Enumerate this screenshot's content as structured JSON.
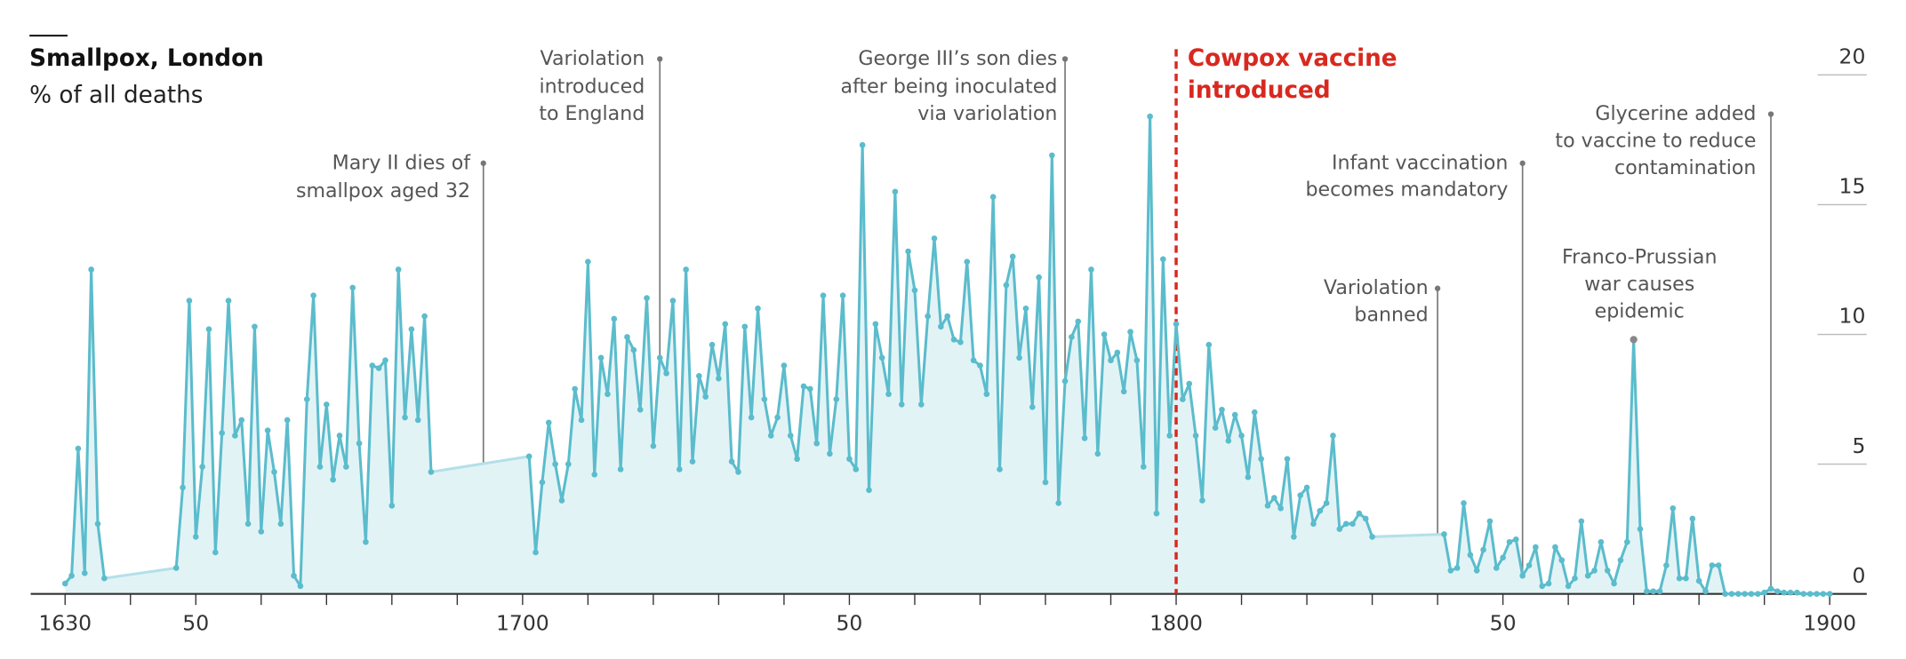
{
  "chart_data": {
    "type": "line",
    "title": "Smallpox, London",
    "subtitle": "% of all deaths",
    "xlim": [
      1625,
      1905
    ],
    "ylim": [
      0,
      20
    ],
    "xticks": [
      1630,
      {
        "value": 1650,
        "label": "50"
      },
      1700,
      {
        "value": 1750,
        "label": "50"
      },
      1800,
      {
        "value": 1850,
        "label": "50"
      },
      1900
    ],
    "xminor_ticks": [
      1640,
      1660,
      1670,
      1680,
      1690,
      1710,
      1720,
      1730,
      1740,
      1760,
      1770,
      1780,
      1790,
      1810,
      1820,
      1830,
      1840,
      1860,
      1870,
      1880,
      1890
    ],
    "yticks": [
      0,
      5,
      10,
      15,
      20
    ],
    "series": [
      {
        "color": "#5bbccc",
        "x": [
          1630,
          1631,
          1632,
          1633,
          1634,
          1635,
          1636,
          1647,
          1648,
          1649,
          1650,
          1651,
          1652,
          1653,
          1654,
          1655,
          1656,
          1657,
          1658,
          1659,
          1660,
          1661,
          1662,
          1663,
          1664,
          1665,
          1666,
          1667,
          1668,
          1669,
          1670,
          1671,
          1672,
          1673,
          1674,
          1675,
          1676,
          1677,
          1678,
          1679,
          1680,
          1681,
          1682,
          1683,
          1684,
          1685,
          1686,
          1701,
          1702,
          1703,
          1704,
          1705,
          1706,
          1707,
          1708,
          1709,
          1710,
          1711,
          1712,
          1713,
          1714,
          1715,
          1716,
          1717,
          1718,
          1719,
          1720,
          1721,
          1722,
          1723,
          1724,
          1725,
          1726,
          1727,
          1728,
          1729,
          1730,
          1731,
          1732,
          1733,
          1734,
          1735,
          1736,
          1737,
          1738,
          1739,
          1740,
          1741,
          1742,
          1743,
          1744,
          1745,
          1746,
          1747,
          1748,
          1749,
          1750,
          1751,
          1752,
          1753,
          1754,
          1755,
          1756,
          1757,
          1758,
          1759,
          1760,
          1761,
          1762,
          1763,
          1764,
          1765,
          1766,
          1767,
          1768,
          1769,
          1770,
          1771,
          1772,
          1773,
          1774,
          1775,
          1776,
          1777,
          1778,
          1779,
          1780,
          1781,
          1782,
          1783,
          1784,
          1785,
          1786,
          1787,
          1788,
          1789,
          1790,
          1791,
          1792,
          1793,
          1794,
          1795,
          1796,
          1797,
          1798,
          1799,
          1800,
          1801,
          1802,
          1803,
          1804,
          1805,
          1806,
          1807,
          1808,
          1809,
          1810,
          1811,
          1812,
          1813,
          1814,
          1815,
          1816,
          1817,
          1818,
          1819,
          1820,
          1821,
          1822,
          1823,
          1824,
          1825,
          1826,
          1827,
          1828,
          1829,
          1830,
          1841,
          1842,
          1843,
          1844,
          1845,
          1846,
          1847,
          1848,
          1849,
          1850,
          1851,
          1852,
          1853,
          1854,
          1855,
          1856,
          1857,
          1858,
          1859,
          1860,
          1861,
          1862,
          1863,
          1864,
          1865,
          1866,
          1867,
          1868,
          1869,
          1870,
          1871,
          1872,
          1873,
          1874,
          1875,
          1876,
          1877,
          1878,
          1879,
          1880,
          1881,
          1882,
          1883,
          1884,
          1885,
          1886,
          1887,
          1888,
          1889,
          1890,
          1891,
          1892,
          1893,
          1894,
          1895,
          1896,
          1897,
          1898,
          1899,
          1900
        ],
        "values": [
          0.4,
          0.7,
          5.6,
          0.8,
          12.5,
          2.7,
          0.6,
          1.0,
          4.1,
          11.3,
          2.2,
          4.9,
          10.2,
          1.6,
          6.2,
          11.3,
          6.1,
          6.7,
          2.7,
          10.3,
          2.4,
          6.3,
          4.7,
          2.7,
          6.7,
          0.7,
          0.3,
          7.5,
          11.5,
          4.9,
          7.3,
          4.4,
          6.1,
          4.9,
          11.8,
          5.8,
          2.0,
          8.8,
          8.7,
          9.0,
          3.4,
          12.5,
          6.8,
          10.2,
          6.7,
          10.7,
          4.7,
          5.3,
          1.6,
          4.3,
          6.6,
          5.0,
          3.6,
          5.0,
          7.9,
          6.7,
          12.8,
          4.6,
          9.1,
          7.7,
          10.6,
          4.8,
          9.9,
          9.4,
          7.1,
          11.4,
          5.7,
          9.1,
          8.5,
          11.3,
          4.8,
          12.5,
          5.1,
          8.4,
          7.6,
          9.6,
          8.3,
          10.4,
          5.1,
          4.7,
          10.3,
          6.8,
          11.0,
          7.5,
          6.1,
          6.8,
          8.8,
          6.1,
          5.2,
          8.0,
          7.9,
          5.8,
          11.5,
          5.4,
          7.5,
          11.5,
          5.2,
          4.8,
          17.3,
          4.0,
          10.4,
          9.1,
          7.7,
          15.5,
          7.3,
          13.2,
          11.7,
          7.3,
          10.7,
          13.7,
          10.3,
          10.7,
          9.8,
          9.7,
          12.8,
          9.0,
          8.8,
          7.7,
          15.3,
          4.8,
          11.9,
          13.0,
          9.1,
          11.0,
          7.2,
          12.2,
          4.3,
          16.9,
          3.5,
          8.2,
          9.9,
          10.5,
          6.0,
          12.5,
          5.4,
          10.0,
          9.0,
          9.3,
          7.8,
          10.1,
          9.0,
          4.9,
          18.4,
          3.1,
          12.9,
          6.1,
          10.4,
          7.5,
          8.1,
          6.1,
          3.6,
          9.6,
          6.4,
          7.1,
          5.9,
          6.9,
          6.1,
          4.5,
          7.0,
          5.2,
          3.4,
          3.7,
          3.3,
          5.2,
          2.2,
          3.8,
          4.1,
          2.7,
          3.2,
          3.5,
          6.1,
          2.5,
          2.7,
          2.7,
          3.1,
          2.9,
          2.2,
          2.3,
          0.9,
          1.0,
          3.5,
          1.5,
          0.9,
          1.7,
          2.8,
          1.0,
          1.4,
          2.0,
          2.1,
          0.7,
          1.1,
          1.8,
          0.3,
          0.4,
          1.8,
          1.3,
          0.3,
          0.6,
          2.8,
          0.7,
          0.9,
          2.0,
          0.9,
          0.4,
          1.3,
          2.0,
          9.8,
          2.5,
          0.1,
          0.1,
          0.1,
          1.1,
          3.3,
          0.6,
          0.6,
          2.9,
          0.5,
          0.1,
          1.1,
          1.1,
          0,
          0,
          0,
          0,
          0,
          0,
          0.05,
          0.2,
          0.1,
          0.05,
          0.05,
          0.05,
          0,
          0,
          0,
          0,
          0
        ]
      }
    ],
    "annotations": [
      {
        "x": 1694,
        "text": [
          "Mary II dies of",
          "smallpox aged 32"
        ]
      },
      {
        "x": 1721,
        "text": [
          "Variolation",
          "introduced",
          "to England"
        ]
      },
      {
        "x": 1783,
        "text": [
          "George III’s son dies",
          "after being inoculated",
          "via variolation"
        ]
      },
      {
        "x": 1800,
        "text": [
          "Cowpox vaccine",
          "introduced"
        ],
        "color": "#d8291f"
      },
      {
        "x": 1840,
        "text": [
          "Variolation",
          "banned"
        ]
      },
      {
        "x": 1853,
        "text": [
          "Infant vaccination",
          "becomes mandatory"
        ]
      },
      {
        "x": 1891,
        "text": [
          "Glycerine added",
          "to vaccine to reduce",
          "contamination"
        ]
      },
      {
        "x": 1870,
        "text": [
          "Franco-Prussian",
          "war causes",
          "epidemic"
        ]
      }
    ]
  }
}
